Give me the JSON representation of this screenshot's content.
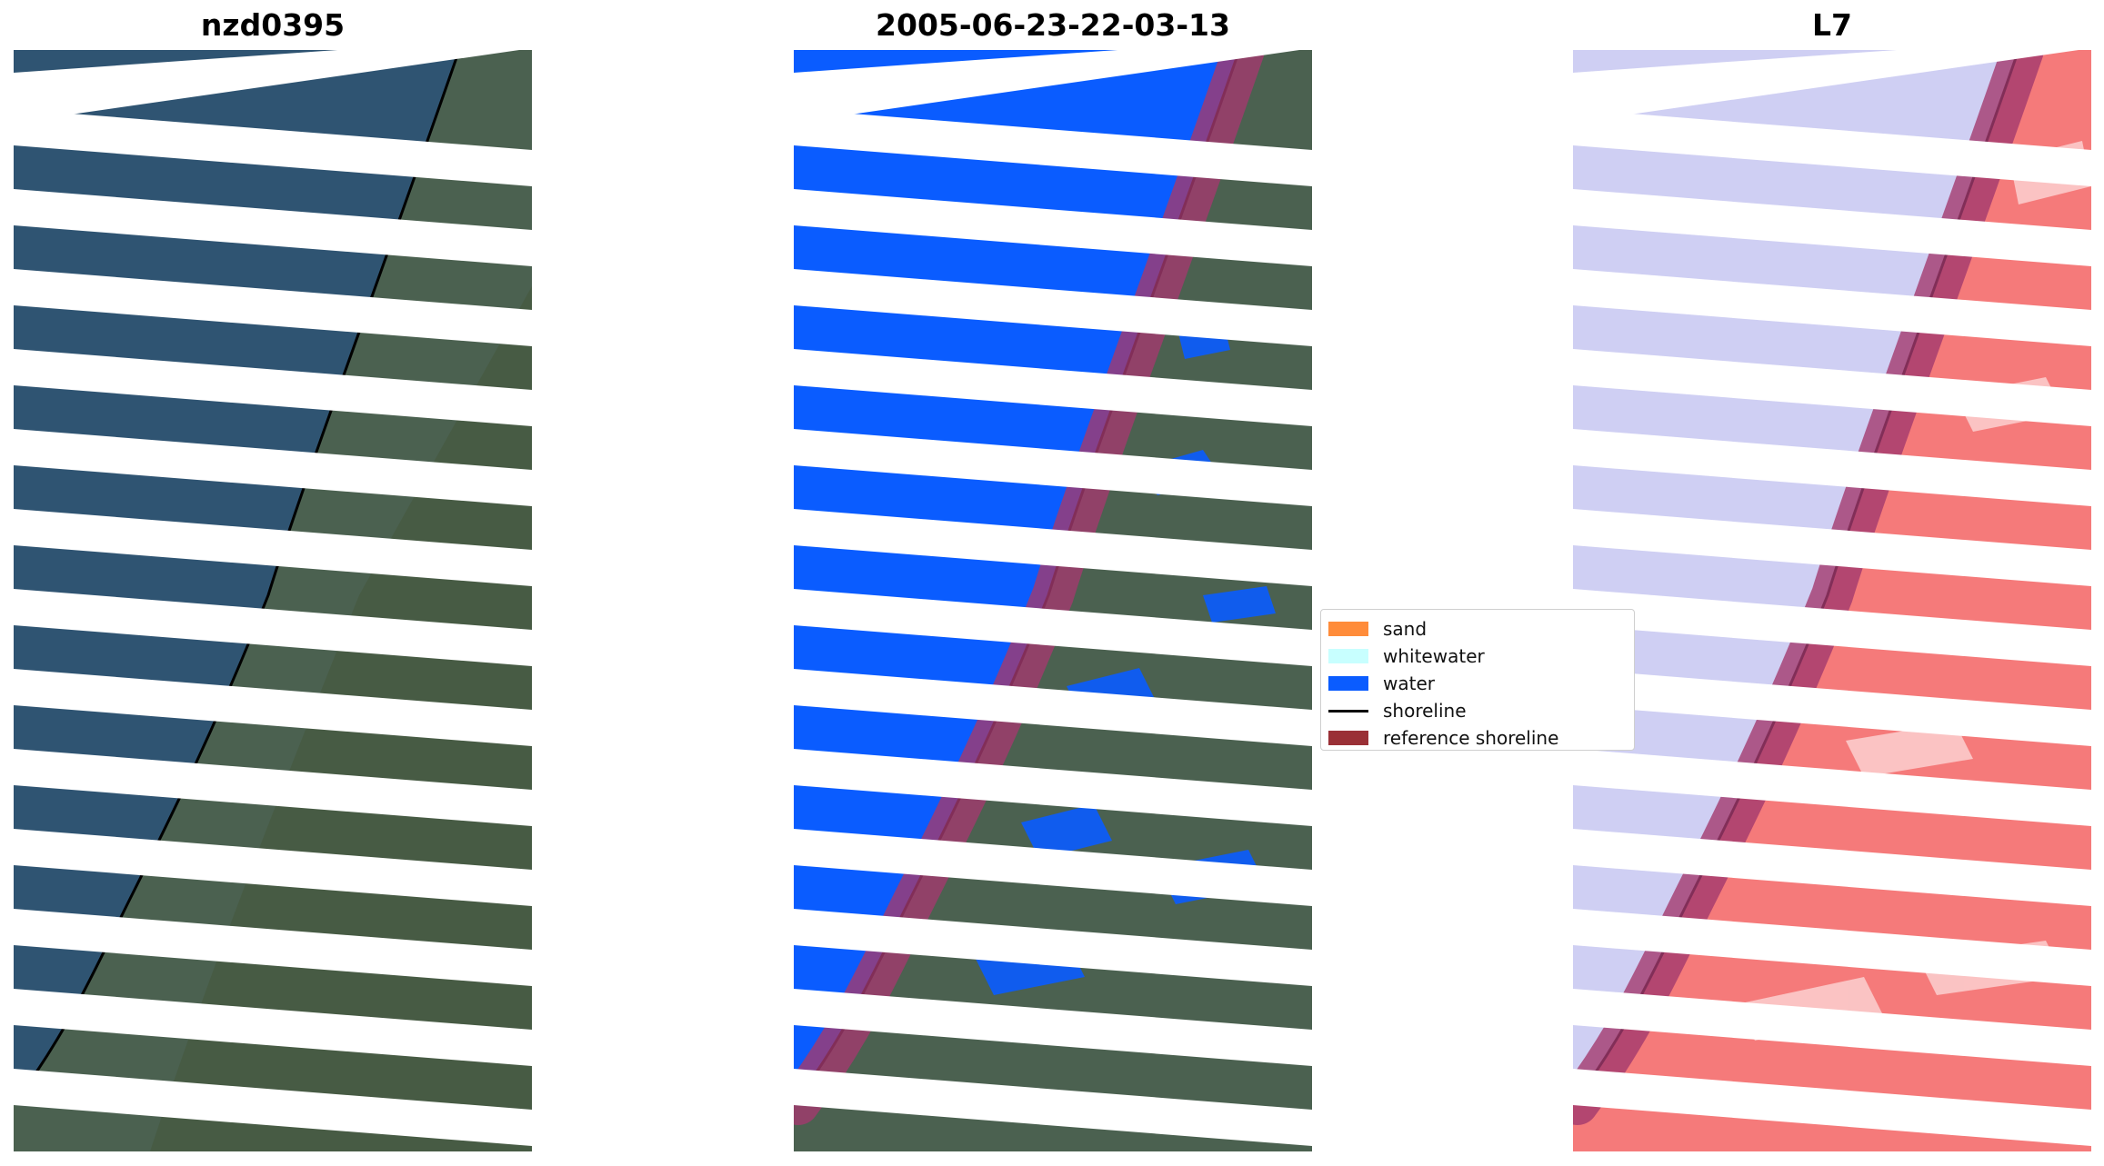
{
  "panels": [
    {
      "title": "nzd0395",
      "style": "rgb"
    },
    {
      "title": "2005-06-23-22-03-13",
      "style": "classified"
    },
    {
      "title": "L7",
      "style": "index"
    }
  ],
  "legend": {
    "items": [
      {
        "label": "sand",
        "kind": "patch",
        "color": "#ff8c3a"
      },
      {
        "label": "whitewater",
        "kind": "patch",
        "color": "#c8ffff"
      },
      {
        "label": "water",
        "kind": "patch",
        "color": "#0a5cff"
      },
      {
        "label": "shoreline",
        "kind": "line",
        "color": "#000000"
      },
      {
        "label": "reference shoreline",
        "kind": "patch",
        "color": "#9a3036"
      }
    ]
  },
  "colors": {
    "sea": "#2f5472",
    "land": "#4a5e4a",
    "water_class": "#0a5cff",
    "index_water": "#c9c9f0",
    "index_land": "#f46a6a",
    "reference_band": "#a23a6e"
  }
}
